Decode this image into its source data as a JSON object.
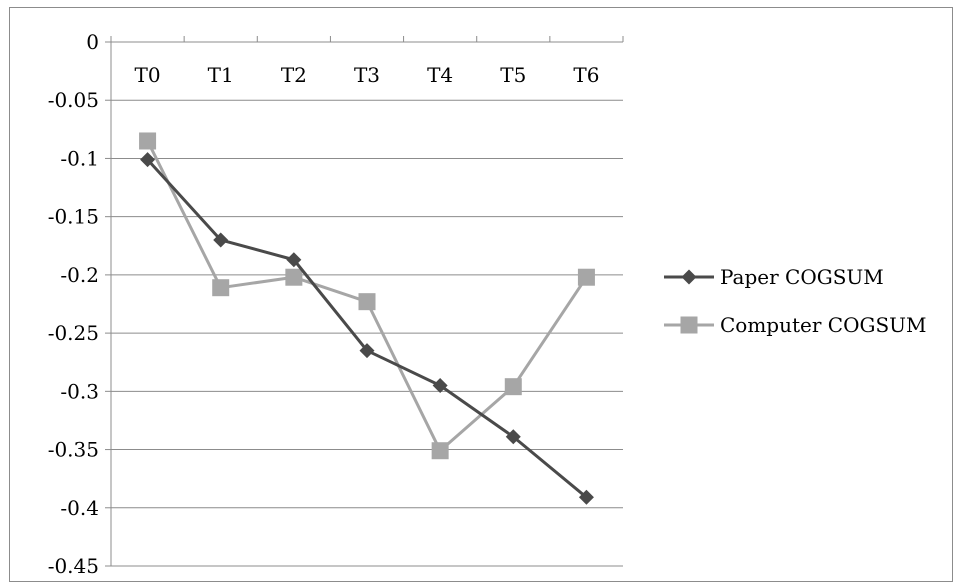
{
  "chart_data": {
    "type": "line",
    "categories": [
      "T0",
      "T1",
      "T2",
      "T3",
      "T4",
      "T5",
      "T6"
    ],
    "series": [
      {
        "name": "Paper COGSUM",
        "values": [
          -0.101,
          -0.17,
          -0.187,
          -0.265,
          -0.295,
          -0.339,
          -0.391
        ],
        "color": "#4a4a4a",
        "marker": "diamond"
      },
      {
        "name": "Computer COGSUM",
        "values": [
          -0.085,
          -0.211,
          -0.202,
          -0.223,
          -0.351,
          -0.296,
          -0.202
        ],
        "color": "#a6a6a6",
        "marker": "square"
      }
    ],
    "ylim": [
      -0.45,
      0
    ],
    "yticks": [
      "0",
      "-0.05",
      "-0.1",
      "-0.15",
      "-0.2",
      "-0.25",
      "-0.3",
      "-0.35",
      "-0.4",
      "-0.45"
    ],
    "grid": true,
    "legend_position": "right",
    "x_axis_position": "top"
  }
}
